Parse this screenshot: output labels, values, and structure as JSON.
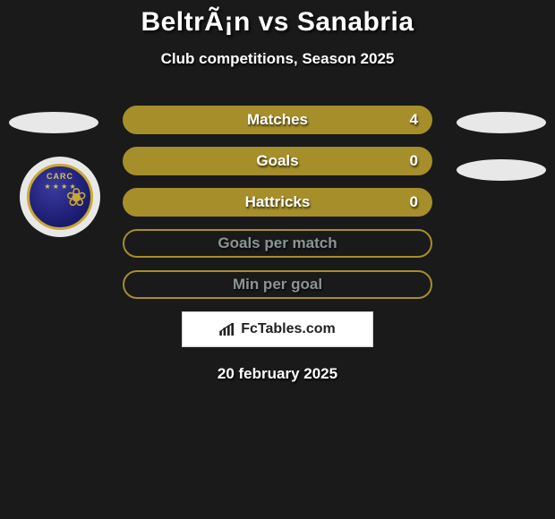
{
  "header": {
    "title": "BeltrÃ¡n vs Sanabria",
    "subtitle": "Club competitions, Season 2025"
  },
  "badge": {
    "text": "CARC",
    "stars": "★ ★ ★ ★",
    "border_color": "#c9a832",
    "bg_gradient_from": "#3a3a9e",
    "bg_gradient_to": "#1a1a6e"
  },
  "bars": {
    "fill_color": "#a68e2a",
    "border_color": "#a68e2a",
    "label_color_filled": "#ffffff",
    "label_color_outline": "#8a9494",
    "items": [
      {
        "label": "Matches",
        "value": "4",
        "style": "filled",
        "show_value": true
      },
      {
        "label": "Goals",
        "value": "0",
        "style": "filled",
        "show_value": true
      },
      {
        "label": "Hattricks",
        "value": "0",
        "style": "filled",
        "show_value": true
      },
      {
        "label": "Goals per match",
        "value": "",
        "style": "outline",
        "show_value": false
      },
      {
        "label": "Min per goal",
        "value": "",
        "style": "outline",
        "show_value": false
      }
    ]
  },
  "footer": {
    "logo_text": "FcTables.com",
    "date": "20 february 2025"
  },
  "colors": {
    "page_bg": "#1a1a1a",
    "oval_bg": "#e8e8e8",
    "logo_box_bg": "#ffffff",
    "logo_box_border": "#d0d0d0"
  }
}
